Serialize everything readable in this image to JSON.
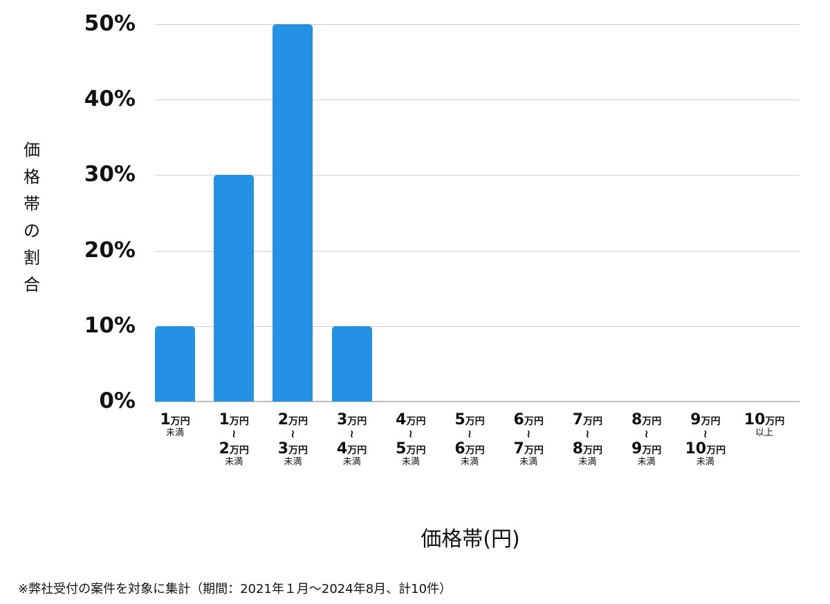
{
  "chart_data": {
    "type": "bar",
    "title": "",
    "xlabel": "価格帯(円)",
    "ylabel": "価格帯の割合",
    "ylim": [
      0,
      50
    ],
    "yticks": [
      "0%",
      "10%",
      "20%",
      "30%",
      "40%",
      "50%"
    ],
    "grid": true,
    "legend": null,
    "bar_color": "#2591e3",
    "categories": [
      "1万円未満",
      "1万円〜2万円未満",
      "2万円〜3万円未満",
      "3万円〜4万円未満",
      "4万円〜5万円未満",
      "5万円〜6万円未満",
      "6万円〜7万円未満",
      "7万円〜8万円未満",
      "8万円〜9万円未満",
      "9万円〜10万円未満",
      "10万円以上"
    ],
    "values": [
      10,
      30,
      50,
      10,
      0,
      0,
      0,
      0,
      0,
      0,
      0
    ],
    "unit": "%"
  },
  "axis": {
    "y_title_chars": [
      "価",
      "格",
      "帯",
      "の",
      "割",
      "合"
    ],
    "x_title": "価格帯(円)",
    "y_ticks": [
      {
        "label": "50%",
        "value": 50
      },
      {
        "label": "40%",
        "value": 40
      },
      {
        "label": "30%",
        "value": 30
      },
      {
        "label": "20%",
        "value": 20
      },
      {
        "label": "10%",
        "value": 10
      },
      {
        "label": "0%",
        "value": 0
      }
    ]
  },
  "x_labels": [
    {
      "from": "1",
      "to": "",
      "suffix": "未満"
    },
    {
      "from": "1",
      "to": "2",
      "suffix": "未満"
    },
    {
      "from": "2",
      "to": "3",
      "suffix": "未満"
    },
    {
      "from": "3",
      "to": "4",
      "suffix": "未満"
    },
    {
      "from": "4",
      "to": "5",
      "suffix": "未満"
    },
    {
      "from": "5",
      "to": "6",
      "suffix": "未満"
    },
    {
      "from": "6",
      "to": "7",
      "suffix": "未満"
    },
    {
      "from": "7",
      "to": "8",
      "suffix": "未満"
    },
    {
      "from": "8",
      "to": "9",
      "suffix": "未満"
    },
    {
      "from": "9",
      "to": "10",
      "suffix": "未満"
    },
    {
      "from": "10",
      "to": "",
      "suffix": "以上"
    }
  ],
  "units": {
    "man_yen": "万円",
    "tilde": "~"
  },
  "footnote": "※弊社受付の案件を対象に集計（期間：2021年１月～2024年8月、計10件）"
}
